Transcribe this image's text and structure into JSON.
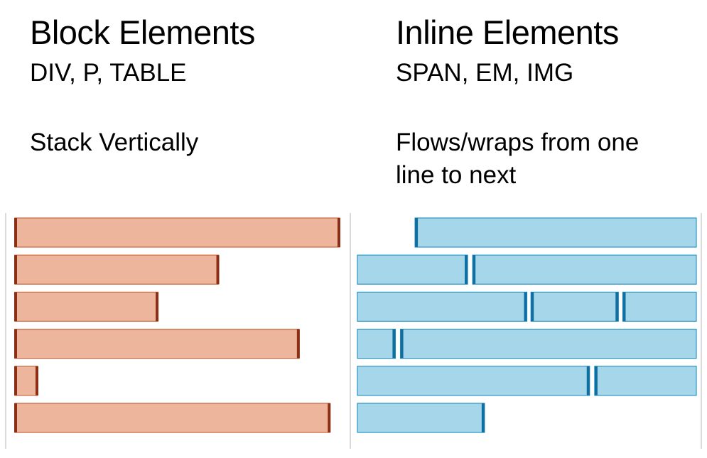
{
  "left": {
    "title": "Block Elements",
    "subtitle": "DIV, P, TABLE",
    "description": "Stack Vertically",
    "bar_fractions": [
      1.0,
      0.627,
      0.44,
      0.875,
      0.07,
      0.97
    ]
  },
  "right": {
    "title": "Inline Elements",
    "subtitle": "SPAN, EM, IMG",
    "description_lines": [
      "Flows/wraps from one",
      "line to next"
    ],
    "rows": [
      [
        [
          0.17,
          1.0
        ]
      ],
      [
        [
          0.0,
          0.325
        ],
        [
          0.34,
          1.0
        ]
      ],
      [
        [
          0.0,
          0.5
        ],
        [
          0.512,
          0.77
        ],
        [
          0.783,
          1.0
        ]
      ],
      [
        [
          0.0,
          0.112
        ],
        [
          0.127,
          1.0
        ]
      ],
      [
        [
          0.0,
          0.685
        ],
        [
          0.7,
          1.0
        ]
      ],
      [
        [
          0.0,
          0.375
        ]
      ]
    ]
  },
  "colors": {
    "subtitle": "#c00000",
    "block_fill": "#edb59c",
    "block_border": "#c8663c",
    "block_marker": "#8b2e14",
    "inline_fill": "#a6d6ea",
    "inline_border": "#2a93c6",
    "inline_marker": "#0f6fa0",
    "guide": "#cfcfcf"
  }
}
